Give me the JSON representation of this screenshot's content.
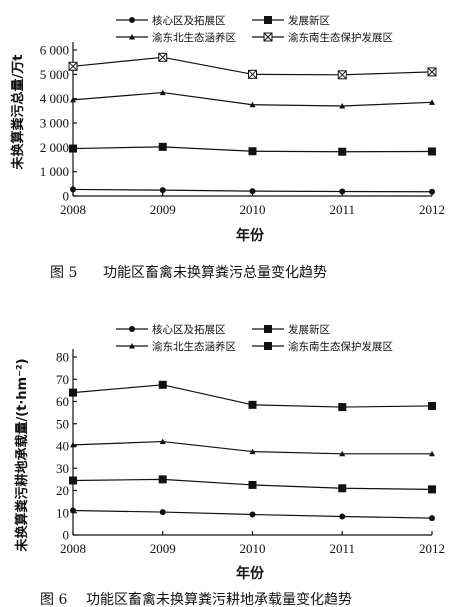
{
  "chart_data": [
    {
      "type": "line",
      "figure_label": "图 5",
      "caption": "功能区畜禽未换算粪污总量变化趋势",
      "xlabel": "年份",
      "ylabel": "未换算粪污总量/万t",
      "x": [
        "2008",
        "2009",
        "2010",
        "2011",
        "2012"
      ],
      "ylim": [
        0,
        6000
      ],
      "yticks": [
        "0",
        "1 000",
        "2 000",
        "3 000",
        "4 000",
        "5 000",
        "6 000"
      ],
      "legend_placement": "top",
      "grid": false,
      "series": [
        {
          "name": "核心区及拓展区",
          "marker": "circle",
          "values": [
            270,
            240,
            200,
            185,
            175
          ]
        },
        {
          "name": "发展新区",
          "marker": "square",
          "values": [
            1950,
            2020,
            1840,
            1820,
            1830
          ]
        },
        {
          "name": "渝东北生态涵养区",
          "marker": "triangle",
          "values": [
            3950,
            4250,
            3750,
            3700,
            3850
          ]
        },
        {
          "name": "渝东南生态保护发展区",
          "marker": "crossed-square",
          "values": [
            5330,
            5700,
            5000,
            4980,
            5100
          ]
        }
      ]
    },
    {
      "type": "line",
      "figure_label": "图 6",
      "caption": "功能区畜禽未换算粪污耕地承载量变化趋势",
      "xlabel": "年份",
      "ylabel": "未换算粪污耕地承载量/(t·hm⁻²)",
      "x": [
        "2008",
        "2009",
        "2010",
        "2011",
        "2012"
      ],
      "ylim": [
        0,
        80
      ],
      "yticks": [
        "0",
        "10",
        "20",
        "30",
        "40",
        "50",
        "60",
        "70",
        "80"
      ],
      "legend_placement": "top",
      "grid": false,
      "series": [
        {
          "name": "核心区及拓展区",
          "marker": "circle",
          "values": [
            11,
            10.3,
            9.2,
            8.3,
            7.6
          ]
        },
        {
          "name": "发展新区",
          "marker": "square",
          "values": [
            24.5,
            25,
            22.5,
            21,
            20.5
          ]
        },
        {
          "name": "渝东北生态涵养区",
          "marker": "triangle",
          "values": [
            40.5,
            42,
            37.5,
            36.5,
            36.5
          ]
        },
        {
          "name": "渝东南生态保护发展区",
          "marker": "square",
          "values": [
            64,
            67.5,
            58.5,
            57.5,
            58
          ]
        }
      ]
    }
  ]
}
